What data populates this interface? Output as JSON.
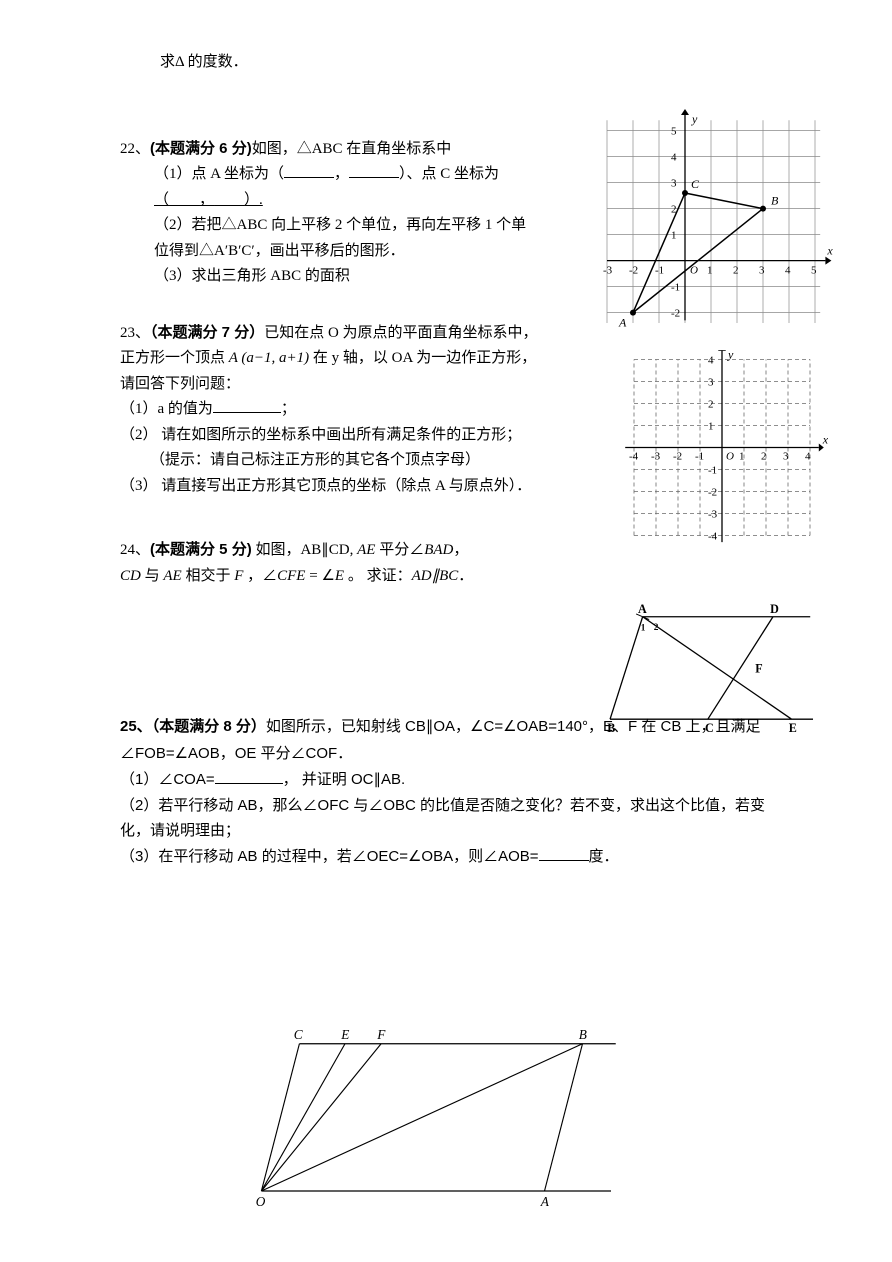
{
  "top_line": "求Δ 的度数．",
  "p22": {
    "num": "22、",
    "head_bold": "(本题满分 6 分)",
    "head_rest": "如图，△ABC 在直角坐标系中",
    "q1a": "（1）点 A 坐标为（",
    "q1b": "，",
    "q1c": "）、点 C 坐标为",
    "q1d": "（",
    "q1e": "，",
    "q1f": "）.",
    "q2": "（2）若把△ABC 向上平移 2 个单位，再向左平移 1 个单位得到△A′B′C′，画出平移后的图形．",
    "q3": "（3）求出三角形 ABC 的面积",
    "figure": {
      "xmin": -3,
      "xmax": 5.4,
      "ymin": -2.4,
      "ymax": 5.6,
      "cell": 26,
      "axis_color": "#000000",
      "grid_color": "#8a8a8a",
      "tick_label_font": 11,
      "y_label": "y",
      "x_label": "x",
      "xticks": [
        -3,
        -2,
        -1,
        1,
        2,
        3,
        4,
        5
      ],
      "yticks": [
        -2,
        -1,
        1,
        2,
        3,
        4,
        5
      ],
      "A": [
        -2,
        -2
      ],
      "B": [
        3,
        2
      ],
      "C": [
        0,
        2.6
      ],
      "A_label": "A",
      "B_label": "B",
      "C_label": "C",
      "O_label": "O"
    }
  },
  "p23": {
    "num": "23、",
    "head_bold": "（本题满分 7 分）",
    "head_rest_a": "已知在点 O 为原点的平面直角坐标系中，正方形一个顶点 ",
    "point_expr": "A (a−1, a+1)",
    "head_rest_b": " 在 y 轴，以 OA 为一边作正方形，请回答下列问题：",
    "q1a": "（1）a 的值为",
    "q1b": "；",
    "q2a": "（2） 请在如图所示的坐标系中画出所有满足条件的正方形；",
    "q2b": "（提示：请自己标注正方形的其它各个顶点字母）",
    "q3": "（3） 请直接写出正方形其它顶点的坐标（除点 A 与原点外）．",
    "figure": {
      "xmin": -4.5,
      "xmax": 4.5,
      "ymin": -4.5,
      "ymax": 4.5,
      "cell": 22,
      "axis_color": "#000000",
      "grid_color": "#6a6a6a",
      "tick_label_font": 11,
      "xticks": [
        -4,
        -3,
        -2,
        -1,
        1,
        2,
        3,
        4
      ],
      "yticks": [
        -4,
        -3,
        -2,
        -1,
        1,
        2,
        3,
        4
      ],
      "y_label": "y",
      "x_label": "x",
      "O_label": "O"
    }
  },
  "p24": {
    "num": "24、",
    "head_bold": "(本题满分 5 分)",
    "text_a": " 如图，AB∥CD,  ",
    "text_b": "AE",
    "text_c": " 平分∠",
    "text_d": "BAD",
    "text_e": "，",
    "line2_a": "CD",
    "line2_b": " 与 ",
    "line2_c": "AE",
    "line2_d": " 相交于 ",
    "line2_e": "F",
    "line2_f": " ，∠",
    "line2_g": "CFE",
    "line2_h": " = ∠",
    "line2_i": "E",
    "line2_j": " 。  求证：",
    "line2_k": "AD∥BC",
    "line2_l": "．",
    "figure": {
      "A": [
        35,
        10
      ],
      "D": [
        175,
        10
      ],
      "topR": [
        215,
        10
      ],
      "B": [
        0,
        120
      ],
      "C": [
        105,
        120
      ],
      "E": [
        195,
        120
      ],
      "botR": [
        218,
        120
      ],
      "F": [
        150,
        64
      ],
      "labels": {
        "A": "A",
        "B": "B",
        "C": "C",
        "D": "D",
        "E": "E",
        "F": "F",
        "one": "1",
        "two": "2"
      }
    }
  },
  "p25": {
    "num": "25、",
    "head_bold": "（本题满分 8 分）",
    "text1": "如图所示，已知射线 CB∥OA，∠C=∠OAB=140°，E、F 在 CB 上，且满足∠FOB=∠AOB，OE 平分∠COF．",
    "q1a": "（1）∠COA=",
    "q1b": "， 并证明 OC∥AB.",
    "q2": "（2）若平行移动 AB，那么∠OFC 与∠OBC 的比值是否随之变化？若不变，求出这个比值，若变化，请说明理由；",
    "q3a": "（3）在平行移动 AB 的过程中，若∠OEC=∠OBA，则∠AOB=",
    "q3b": "度．",
    "figure": {
      "O": [
        12,
        170
      ],
      "C": [
        52,
        15
      ],
      "E": [
        100,
        15
      ],
      "F": [
        138,
        15
      ],
      "B": [
        350,
        15
      ],
      "A": [
        310,
        170
      ],
      "labels": {
        "O": "O",
        "C": "C",
        "E": "E",
        "F": "F",
        "B": "B",
        "A": "A"
      }
    }
  }
}
